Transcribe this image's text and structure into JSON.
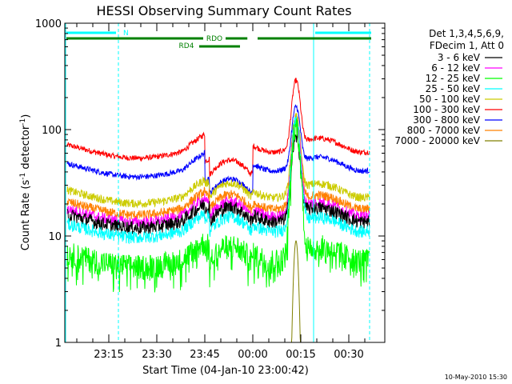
{
  "chart_data": {
    "type": "line",
    "title": "HESSI Observing Summary Count Rates",
    "xlabel": "Start Time (04-Jan-10 23:00:42)",
    "ylabel": "Count Rate (s",
    "ylabel_sup": "-1",
    "ylabel_tail": " detector",
    "ylabel_sup2": "-1",
    "ylabel_close": ")",
    "y_scale": "log",
    "ylim": [
      1,
      1000
    ],
    "xlim_min": [
      0,
      100
    ],
    "y_ticks": [
      {
        "value": 1,
        "label": "1"
      },
      {
        "value": 10,
        "label": "10"
      },
      {
        "value": 100,
        "label": "100"
      },
      {
        "value": 1000,
        "label": "1000"
      }
    ],
    "x_ticks": [
      {
        "t": 15,
        "label": "23:15"
      },
      {
        "t": 30,
        "label": "23:30"
      },
      {
        "t": 45,
        "label": "23:45"
      },
      {
        "t": 60,
        "label": "00:00"
      },
      {
        "t": 75,
        "label": "00:15"
      },
      {
        "t": 90,
        "label": "00:30"
      }
    ],
    "legend_header": [
      "Det 1,3,4,5,6,9,",
      "FDecim 1, Att 0"
    ],
    "legend_position": "right",
    "series": [
      {
        "name": "3 - 6 keV",
        "color": "#000000",
        "base": 16,
        "peak": 85,
        "noise": 0.1
      },
      {
        "name": "6 - 12 keV",
        "color": "#ff00ff",
        "base": 18,
        "peak": 120,
        "noise": 0.08
      },
      {
        "name": "12 - 25 keV",
        "color": "#00ff00",
        "base": 7,
        "peak": 110,
        "noise": 0.18
      },
      {
        "name": "25 - 50 keV",
        "color": "#00ffff",
        "base": 13,
        "peak": 125,
        "noise": 0.09
      },
      {
        "name": "50 - 100 keV",
        "color": "#cccc00",
        "base": 27,
        "peak": 135,
        "noise": 0.06
      },
      {
        "name": "100 - 300 keV",
        "color": "#ff0000",
        "base": 72,
        "peak": 290,
        "noise": 0.04
      },
      {
        "name": "300 - 800 keV",
        "color": "#0000ff",
        "base": 48,
        "peak": 165,
        "noise": 0.04
      },
      {
        "name": "800 - 7000 keV",
        "color": "#ff8000",
        "base": 21,
        "peak": 130,
        "noise": 0.07
      },
      {
        "name": "7000 - 20000 keV",
        "color": "#808000",
        "base": 0,
        "peak": 9,
        "noise": 0.0
      }
    ],
    "annotations": {
      "night_label": "N",
      "saa_label": "RDO",
      "rd4_label": "RD4",
      "night_color": "#00ffff",
      "saa_color": "#008000"
    },
    "footer_date": "10-May-2010 15:30"
  }
}
